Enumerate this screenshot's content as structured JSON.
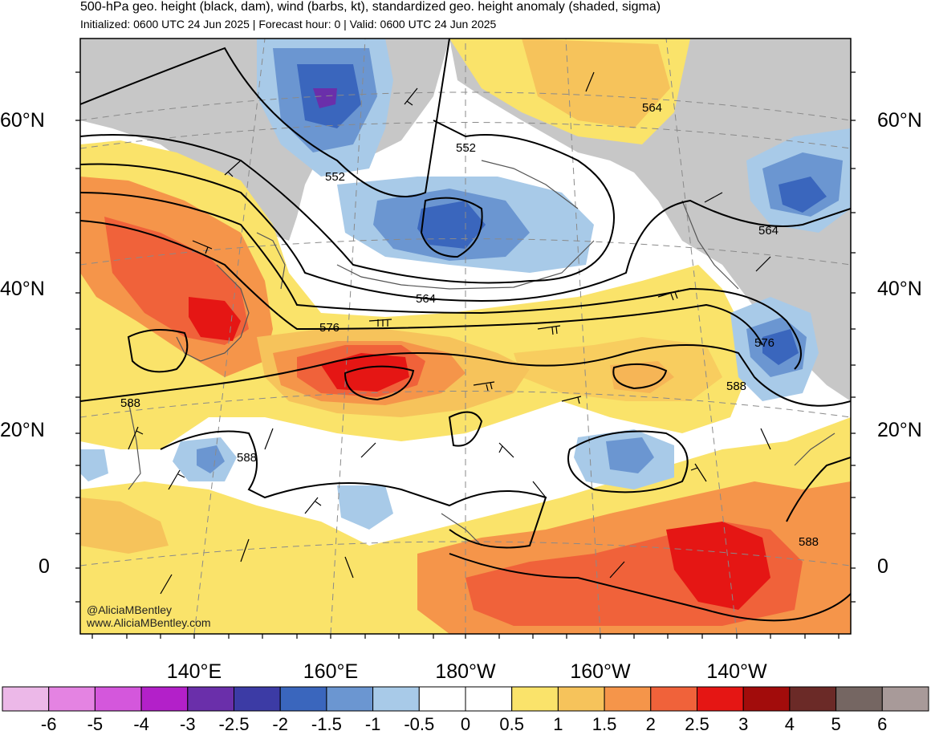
{
  "header": {
    "title": "500-hPa geo. height (black, dam), wind (barbs, kt), standardized geo. height anomaly (shaded, sigma)",
    "subtitle": "Initialized: 0600 UTC 24 Jun 2025 | Forecast hour: 0 | Valid: 0600 UTC 24 Jun 2025"
  },
  "axes": {
    "lat_left": [
      "60°N",
      "40°N",
      "20°N",
      "0"
    ],
    "lat_right": [
      "60°N",
      "40°N",
      "20°N",
      "0"
    ],
    "lon_bottom": [
      "140°E",
      "160°E",
      "180°W",
      "160°W",
      "140°W"
    ]
  },
  "contour_labels": [
    "552",
    "552",
    "564",
    "564",
    "564",
    "576",
    "576",
    "588",
    "588",
    "588",
    "588"
  ],
  "colorbar": {
    "labels": [
      "-6",
      "-5",
      "-4",
      "-3",
      "-2.5",
      "-2",
      "-1.5",
      "-1",
      "-0.5",
      "0",
      "0.5",
      "1",
      "1.5",
      "2",
      "2.5",
      "3",
      "4",
      "5",
      "6"
    ],
    "colors": [
      "#ecb8e8",
      "#e483e2",
      "#d457dc",
      "#b320c9",
      "#6a2faa",
      "#3c3ba5",
      "#3a66bd",
      "#6b96d1",
      "#a8cae8",
      "#ffffff",
      "#ffffff",
      "#fae36a",
      "#f6c35b",
      "#f5954a",
      "#f0623a",
      "#e51614",
      "#a20c0b",
      "#6b2a27",
      "#756662",
      "#a89a99"
    ]
  },
  "credits": {
    "handle": "@AliciaMBentley",
    "website": "www.AliciaMBentley.com"
  },
  "colors": {
    "land": "#c7c7c7",
    "contour": "#000000",
    "coast": "#555555"
  }
}
